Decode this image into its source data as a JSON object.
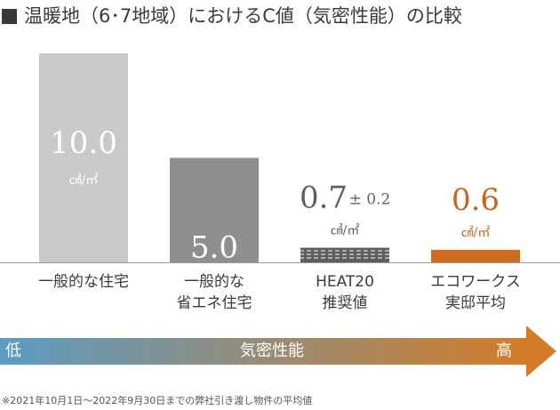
{
  "title": "温暖地（6･7地域）におけるC値（気密性能）の比較",
  "chart_data": {
    "type": "bar",
    "title": "温暖地（6･7地域）におけるC値（気密性能）の比較",
    "categories": [
      [
        "一般的な住宅"
      ],
      [
        "一般的な",
        "省エネ住宅"
      ],
      [
        "HEAT20",
        "推奨値"
      ],
      [
        "エコワークス",
        "実邸平均"
      ]
    ],
    "values": [
      10.0,
      5.0,
      0.7,
      0.6
    ],
    "value_labels": [
      "10.0",
      "5.0",
      "0.7",
      "0.6"
    ],
    "tolerance_label": "± 0.2",
    "unit": "㎠/㎡",
    "colors": [
      "#c9c9c9",
      "#8f8f8f",
      "#5f5f5f",
      "#d06a1e"
    ],
    "label_colors": [
      "#ffffff",
      "#ffffff",
      "#5f5f5f",
      "#c8651a"
    ],
    "ylim": [
      0,
      10.0
    ],
    "grid": false,
    "legend": "none"
  },
  "arrow": {
    "low_label": "低",
    "mid_label": "気密性能",
    "high_label": "高",
    "color_start": "#5b9cc4",
    "color_end": "#d97b22"
  },
  "footnote": "※2021年10月1日～2022年9月30日までの弊社引き渡し物件の平均値"
}
